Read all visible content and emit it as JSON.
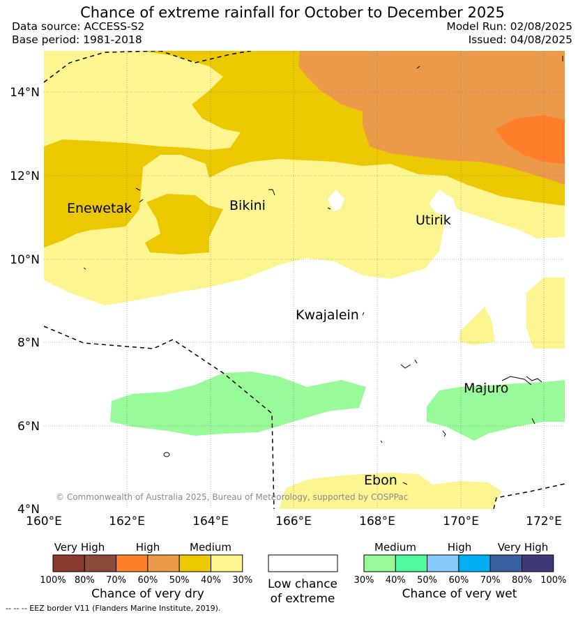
{
  "title": "Chance of extreme rainfall for October to December 2025",
  "data_source": "Data source: ACCESS-S2",
  "base_period": "Base period: 1981-2018",
  "model_run": "Model Run: 02/08/2025",
  "issued": "Issued: 04/08/2025",
  "lat_labels": [
    "14°N",
    "12°N",
    "10°N",
    "8°N",
    "6°N",
    "4°N"
  ],
  "lon_labels": [
    "160°E",
    "162°E",
    "164°E",
    "166°E",
    "168°E",
    "170°E",
    "172°E"
  ],
  "places": {
    "enewetak": "Enewetak",
    "bikini": "Bikini",
    "utirik": "Utirik",
    "kwajalein": "Kwajalein",
    "majuro": "Majuro",
    "ebon": "Ebon"
  },
  "copyright": "© Commonwealth of Australia 2025, Bureau of Meteorology, supported by COSPPac",
  "dry_legend": {
    "headers": [
      "Very High",
      "High",
      "Medium"
    ],
    "colors": [
      "#8b3a2f",
      "#8b4a3a",
      "#ff7f2a",
      "#eb9a4a",
      "#ecc800",
      "#fdf58f"
    ],
    "percents": [
      "100%",
      "80%",
      "70%",
      "60%",
      "50%",
      "40%",
      "30%"
    ],
    "title": "Chance of very dry"
  },
  "low_legend": {
    "line1": "Low chance",
    "line2": "of extreme"
  },
  "wet_legend": {
    "headers": [
      "Medium",
      "High",
      "Very High"
    ],
    "colors": [
      "#99fa99",
      "#4dfaa0",
      "#87c8fa",
      "#00b0f0",
      "#3a5fa0",
      "#3e3a7a"
    ],
    "percents": [
      "30%",
      "40%",
      "50%",
      "60%",
      "70%",
      "80%",
      "100%"
    ],
    "title": "Chance of very wet"
  },
  "footnote": "-- -- -- EEZ border V11 (Flanders Marine Institute, 2019).",
  "colors": {
    "dry_medium_light": "#fdf58f",
    "dry_medium_dark": "#ecc800",
    "dry_high_light": "#eb9a4a",
    "dry_high_dark": "#ff7f2a",
    "wet_medium": "#99fa99"
  }
}
